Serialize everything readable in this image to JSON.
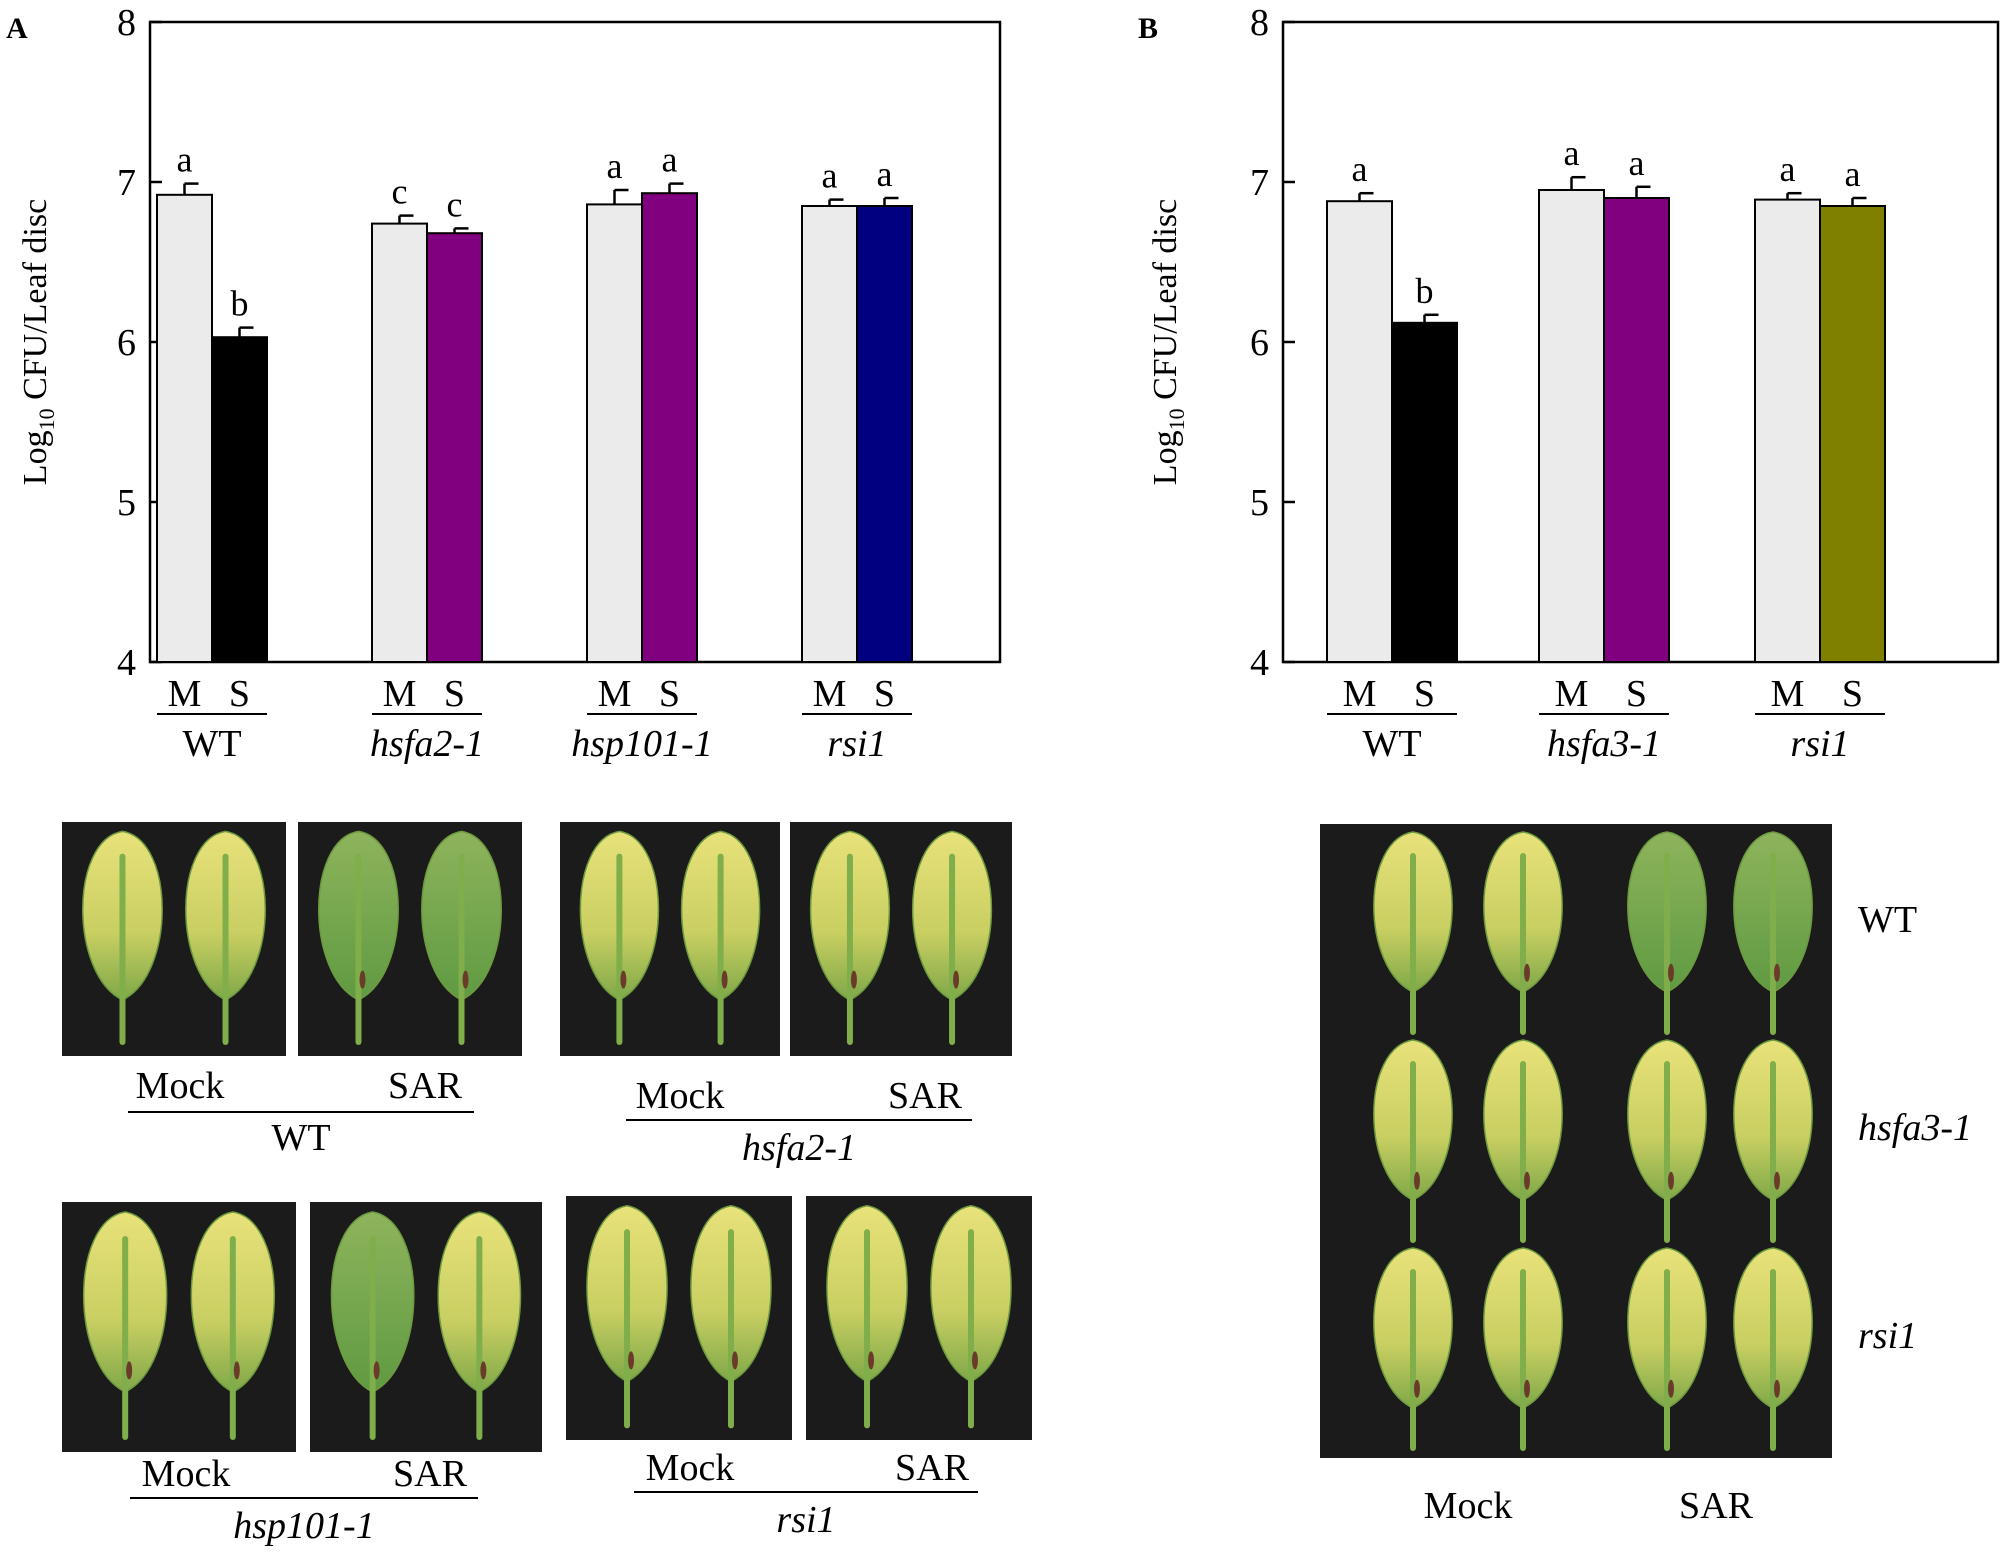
{
  "panels": [
    {
      "letter": "A",
      "chart_data": {
        "type": "bar",
        "title": "",
        "ylabel_main": "Log",
        "ylabel_sub": "10",
        "ylabel_rest": " CFU/Leaf disc",
        "ylim": [
          4,
          8
        ],
        "yticks": [
          4,
          5,
          6,
          7,
          8
        ],
        "grid": false,
        "groups": [
          {
            "name": "WT",
            "italic": false,
            "bars": [
              {
                "label": "M",
                "value": 6.92,
                "err": 0.07,
                "sig": "a",
                "color": "#ebebeb"
              },
              {
                "label": "S",
                "value": 6.03,
                "err": 0.06,
                "sig": "b",
                "color": "#000000"
              }
            ]
          },
          {
            "name": "hsfa2-1",
            "italic": true,
            "bars": [
              {
                "label": "M",
                "value": 6.74,
                "err": 0.05,
                "sig": "c",
                "color": "#ebebeb"
              },
              {
                "label": "S",
                "value": 6.68,
                "err": 0.03,
                "sig": "c",
                "color": "#800080"
              }
            ]
          },
          {
            "name": "hsp101-1",
            "italic": true,
            "bars": [
              {
                "label": "M",
                "value": 6.86,
                "err": 0.09,
                "sig": "a",
                "color": "#ebebeb"
              },
              {
                "label": "S",
                "value": 6.93,
                "err": 0.06,
                "sig": "a",
                "color": "#800080"
              }
            ]
          },
          {
            "name": "rsi1",
            "italic": true,
            "bars": [
              {
                "label": "M",
                "value": 6.85,
                "err": 0.04,
                "sig": "a",
                "color": "#ebebeb"
              },
              {
                "label": "S",
                "value": 6.85,
                "err": 0.05,
                "sig": "a",
                "color": "#000080"
              }
            ]
          }
        ]
      },
      "photos": [
        {
          "genotype": "WT",
          "italic": false,
          "left": "Mock",
          "right": "SAR"
        },
        {
          "genotype": "hsfa2-1",
          "italic": true,
          "left": "Mock",
          "right": "SAR"
        },
        {
          "genotype": "hsp101-1",
          "italic": true,
          "left": "Mock",
          "right": "SAR"
        },
        {
          "genotype": "rsi1",
          "italic": true,
          "left": "Mock",
          "right": "SAR"
        }
      ]
    },
    {
      "letter": "B",
      "chart_data": {
        "type": "bar",
        "title": "",
        "ylabel_main": "Log",
        "ylabel_sub": "10",
        "ylabel_rest": " CFU/Leaf disc",
        "ylim": [
          4,
          8
        ],
        "yticks": [
          4,
          5,
          6,
          7,
          8
        ],
        "grid": false,
        "groups": [
          {
            "name": "WT",
            "italic": false,
            "bars": [
              {
                "label": "M",
                "value": 6.88,
                "err": 0.05,
                "sig": "a",
                "color": "#ebebeb"
              },
              {
                "label": "S",
                "value": 6.12,
                "err": 0.05,
                "sig": "b",
                "color": "#000000"
              }
            ]
          },
          {
            "name": "hsfa3-1",
            "italic": true,
            "bars": [
              {
                "label": "M",
                "value": 6.95,
                "err": 0.08,
                "sig": "a",
                "color": "#ebebeb"
              },
              {
                "label": "S",
                "value": 6.9,
                "err": 0.07,
                "sig": "a",
                "color": "#800080"
              }
            ]
          },
          {
            "name": "rsi1",
            "italic": true,
            "bars": [
              {
                "label": "M",
                "value": 6.89,
                "err": 0.04,
                "sig": "a",
                "color": "#ebebeb"
              },
              {
                "label": "S",
                "value": 6.85,
                "err": 0.05,
                "sig": "a",
                "color": "#808000"
              }
            ]
          }
        ]
      },
      "photo": {
        "rows": [
          {
            "genotype": "WT",
            "italic": false
          },
          {
            "genotype": "hsfa3-1",
            "italic": true
          },
          {
            "genotype": "rsi1",
            "italic": true
          }
        ],
        "left": "Mock",
        "right": "SAR"
      }
    }
  ]
}
